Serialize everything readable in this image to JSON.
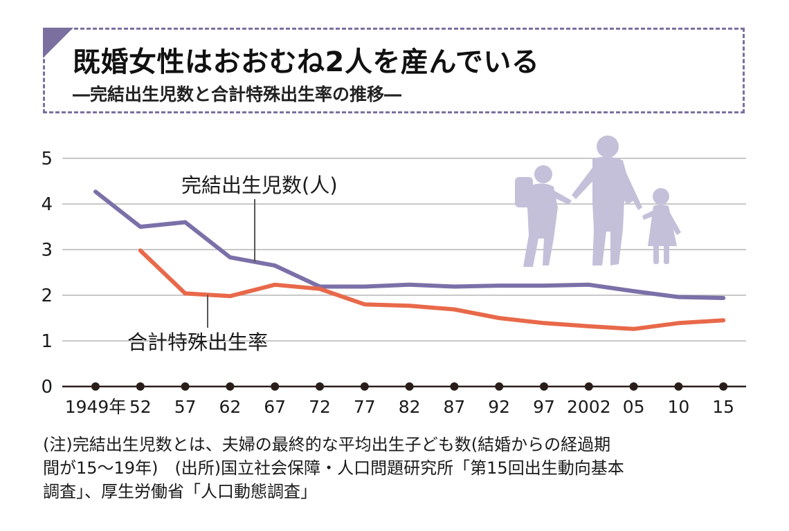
{
  "header": {
    "title": "既婚女性はおおむね2人を産んでいる",
    "subtitle": "―完結出生児数と合計特殊出生率の推移―"
  },
  "footnote": {
    "line1": "(注)完結出生児数とは、夫婦の最終的な平均出生子ども数(結婚からの経過期",
    "line2": "間が15～19年)　(出所)国立社会保障・人口問題研究所「第15回出生動向基本",
    "line3": "調査」、厚生労働省「人口動態調査」"
  },
  "chart_data": {
    "type": "line",
    "x_tick_labels": [
      "1949年",
      "52",
      "57",
      "62",
      "67",
      "72",
      "77",
      "82",
      "87",
      "92",
      "97",
      "2002",
      "05",
      "10",
      "15"
    ],
    "y_ticks": [
      0,
      1,
      2,
      3,
      4,
      5
    ],
    "ylim": [
      0,
      5
    ],
    "grid": true,
    "colors": {
      "completed": "#7b70a8",
      "tfr": "#e8694a",
      "grid": "#b5b5b5",
      "axis": "#2a1e1a",
      "silhouette": "#c4c0da"
    },
    "series": [
      {
        "name": "完結出生児数(人)",
        "key": "completed",
        "points": [
          {
            "x": 0,
            "y": 4.27
          },
          {
            "x": 1,
            "y": 3.5
          },
          {
            "x": 2,
            "y": 3.6
          },
          {
            "x": 3,
            "y": 2.83
          },
          {
            "x": 4,
            "y": 2.65
          },
          {
            "x": 5,
            "y": 2.19
          },
          {
            "x": 6,
            "y": 2.19
          },
          {
            "x": 7,
            "y": 2.23
          },
          {
            "x": 8,
            "y": 2.19
          },
          {
            "x": 9,
            "y": 2.21
          },
          {
            "x": 10,
            "y": 2.21
          },
          {
            "x": 11,
            "y": 2.23
          },
          {
            "x": 12,
            "y": 2.09
          },
          {
            "x": 13,
            "y": 1.96
          },
          {
            "x": 14,
            "y": 1.94
          }
        ]
      },
      {
        "name": "合計特殊出生率",
        "key": "tfr",
        "points": [
          {
            "x": 1,
            "y": 2.98
          },
          {
            "x": 2,
            "y": 2.04
          },
          {
            "x": 3,
            "y": 1.98
          },
          {
            "x": 4,
            "y": 2.23
          },
          {
            "x": 5,
            "y": 2.14
          },
          {
            "x": 6,
            "y": 1.8
          },
          {
            "x": 7,
            "y": 1.77
          },
          {
            "x": 8,
            "y": 1.69
          },
          {
            "x": 9,
            "y": 1.5
          },
          {
            "x": 10,
            "y": 1.39
          },
          {
            "x": 11,
            "y": 1.32
          },
          {
            "x": 12,
            "y": 1.26
          },
          {
            "x": 13,
            "y": 1.39
          },
          {
            "x": 14,
            "y": 1.45
          }
        ]
      }
    ],
    "icons": [
      "family-silhouette-icon"
    ]
  }
}
